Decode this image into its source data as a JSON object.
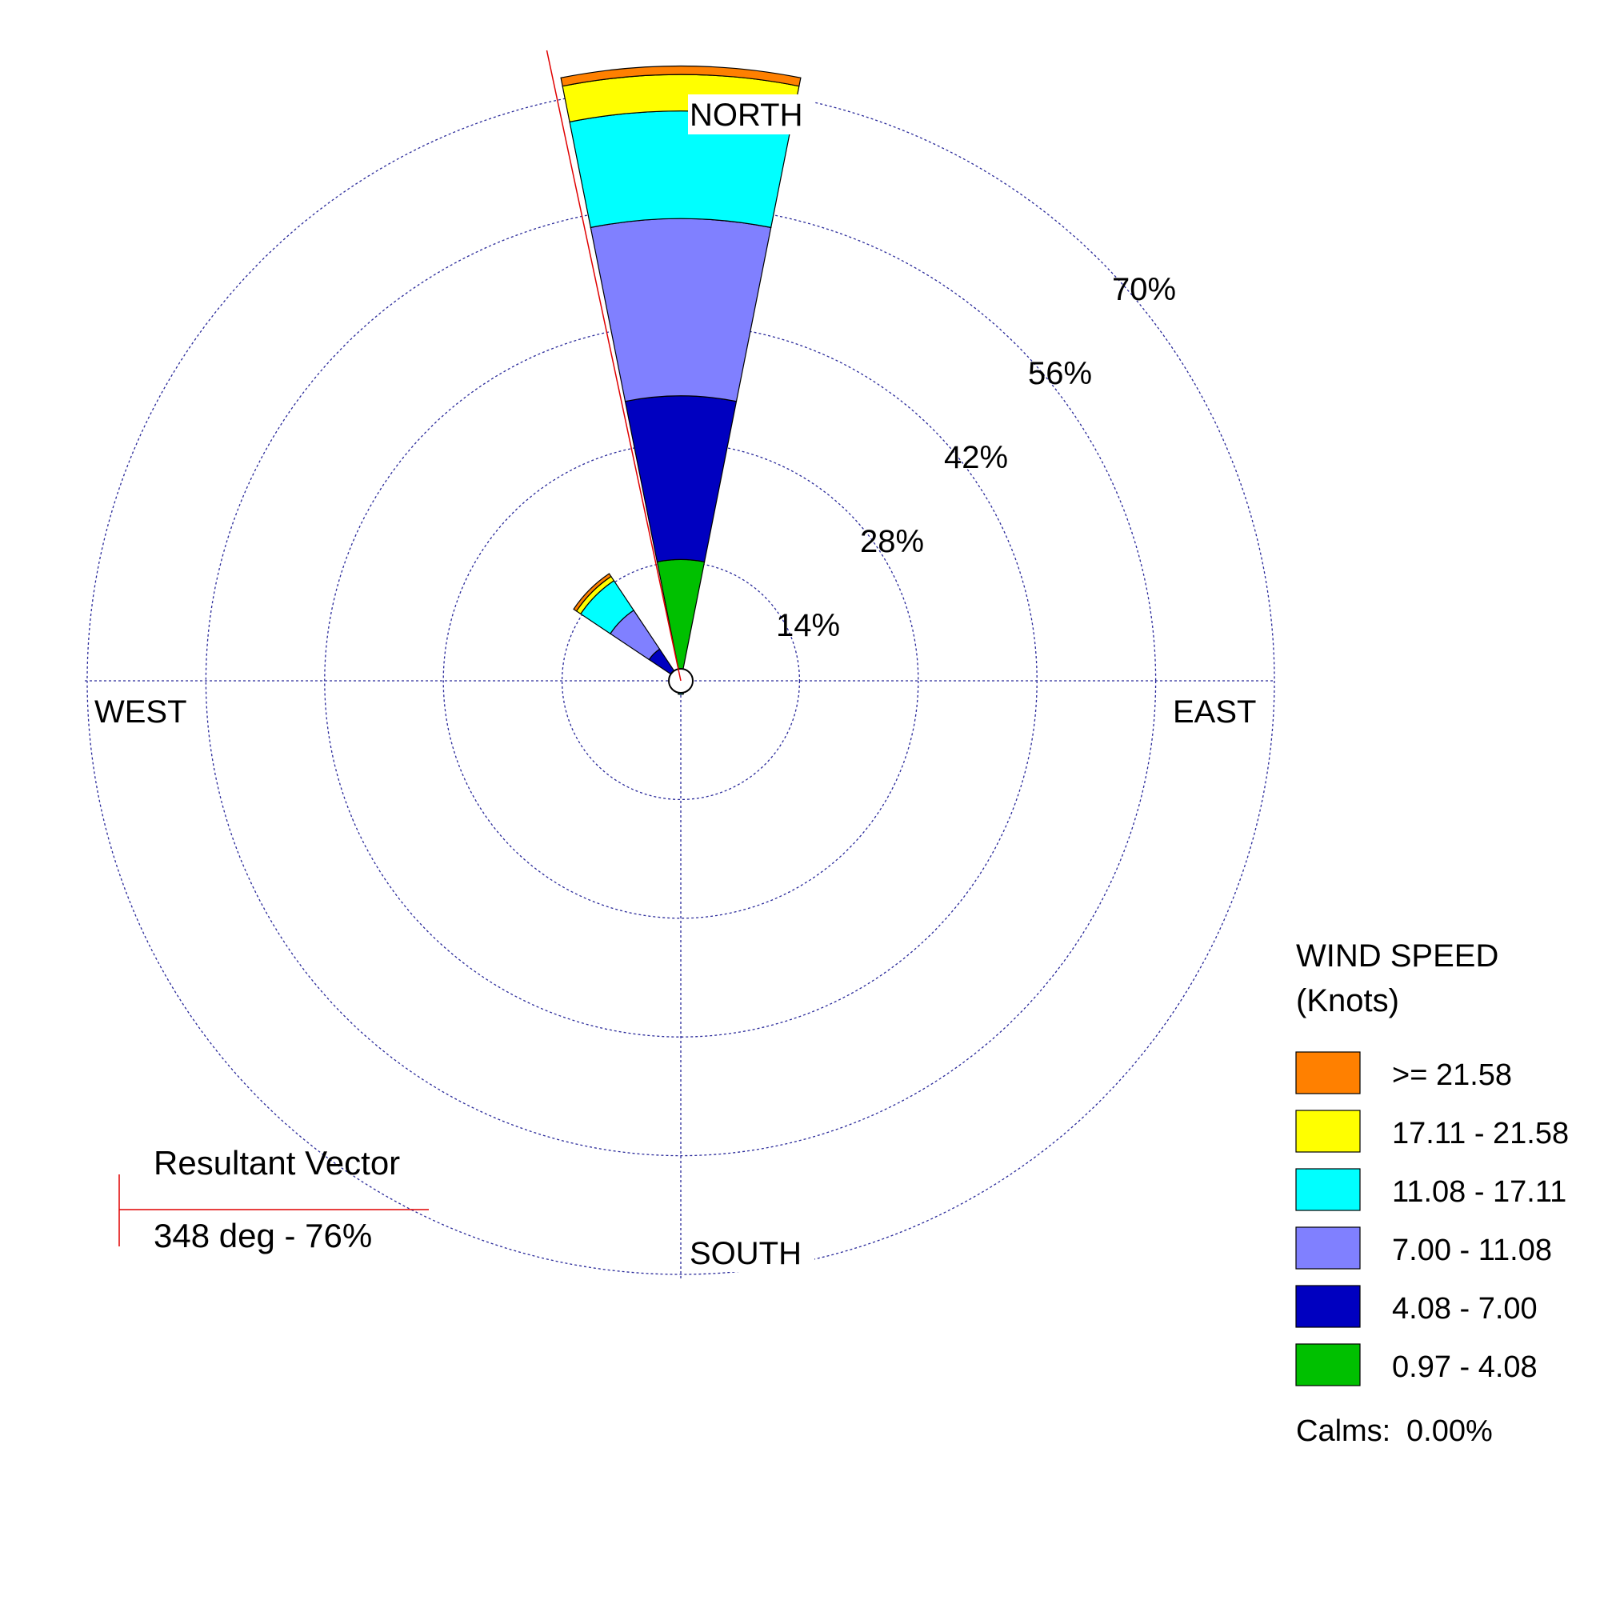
{
  "chart_data": {
    "type": "windrose",
    "compass": {
      "north": "NORTH",
      "south": "SOUTH",
      "east": "EAST",
      "west": "WEST"
    },
    "ring_values": [
      14,
      28,
      42,
      56,
      70
    ],
    "ring_labels": [
      "14%",
      "28%",
      "42%",
      "56%",
      "70%"
    ],
    "rmax": 70,
    "legend": {
      "title_line1": "WIND SPEED",
      "title_line2": "(Knots)",
      "bins": [
        {
          "label": ">= 21.58",
          "color": "#ff8000"
        },
        {
          "label": "17.11 - 21.58",
          "color": "#ffff00"
        },
        {
          "label": "11.08 - 17.11",
          "color": "#00ffff"
        },
        {
          "label": "7.00 - 11.08",
          "color": "#8080ff"
        },
        {
          "label": "4.08 - 7.00",
          "color": "#0000c0"
        },
        {
          "label": "0.97 - 4.08",
          "color": "#00c000"
        }
      ]
    },
    "bin_colors_inner_to_outer": [
      "#00c000",
      "#0000c0",
      "#8080ff",
      "#00ffff",
      "#ffff00",
      "#ff8000"
    ],
    "calms_label": "Calms:",
    "calms_value": "0.00%",
    "resultant": {
      "title": "Resultant Vector",
      "text": "348 deg - 76%",
      "direction_deg": 348,
      "percent": 76,
      "color": "#e00000"
    },
    "sectors": [
      {
        "direction_deg": 0,
        "width_deg": 22.5,
        "cumulative": [
          14.3,
          33.6,
          54.5,
          67.2,
          71.5,
          72.5
        ]
      },
      {
        "direction_deg": 315,
        "width_deg": 22.5,
        "cumulative": [
          0.3,
          4.5,
          10.0,
          14.2,
          14.8,
          15.2
        ]
      },
      {
        "direction_deg": 292.5,
        "width_deg": 22.5,
        "cumulative": [
          0.05,
          0.2,
          0.5,
          1.2,
          1.3,
          1.3
        ]
      },
      {
        "direction_deg": 225,
        "width_deg": 22.5,
        "cumulative": [
          0.05,
          0.1,
          0.4,
          0.8,
          0.9,
          0.9
        ]
      },
      {
        "direction_deg": 180,
        "width_deg": 22.5,
        "cumulative": [
          0.05,
          0.1,
          1.0,
          1.6,
          1.6,
          1.6
        ]
      }
    ]
  }
}
